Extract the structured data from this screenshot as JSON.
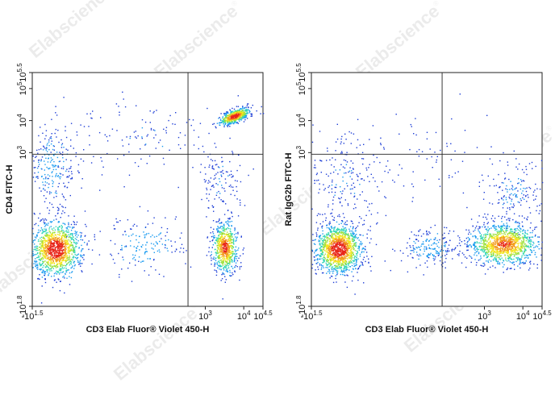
{
  "watermark": {
    "text": "Elabscience",
    "mark": "®"
  },
  "chart_data": [
    {
      "type": "scatter",
      "title": "",
      "xlabel": "CD3 Elab Fluor® Violet 450-H",
      "ylabel": "CD4 FITC-H",
      "xscale": "log",
      "yscale": "log",
      "xlim": [
        -1.5,
        4.5
      ],
      "ylim": [
        -1.8,
        5.5
      ],
      "x_ticks": [
        {
          "base": "-10",
          "exp": "1.5",
          "pos": -1.5
        },
        {
          "base": "10",
          "exp": "3",
          "pos": 3
        },
        {
          "base": "10",
          "exp": "4",
          "pos": 4
        },
        {
          "base": "10",
          "exp": "4.5",
          "pos": 4.5
        }
      ],
      "y_ticks": [
        {
          "base": "-10",
          "exp": "1.8",
          "pos": -1.8
        },
        {
          "base": "10",
          "exp": "3",
          "pos": 3
        },
        {
          "base": "10",
          "exp": "4",
          "pos": 4
        },
        {
          "base": "10",
          "exp": "5",
          "pos": 5
        },
        {
          "base": "10",
          "exp": "5.5",
          "pos": 5.5
        }
      ],
      "gate": {
        "x": 2.55,
        "y": 2.95
      },
      "colormap": [
        "#1f3fd6",
        "#1a9bf0",
        "#2fd6b5",
        "#9be03a",
        "#f3e61d",
        "#f39a1d",
        "#e8261b"
      ],
      "populations": [
        {
          "cx": -0.9,
          "cy": 0.0,
          "sx": 0.32,
          "sy": 0.42,
          "weight": 0.4,
          "peak": 1.0
        },
        {
          "cx": 3.5,
          "cy": 0.05,
          "sx": 0.16,
          "sy": 0.4,
          "weight": 0.22,
          "peak": 0.9
        },
        {
          "cx": 3.75,
          "cy": 4.15,
          "sx": 0.2,
          "sy": 0.1,
          "weight": 0.17,
          "peak": 1.0,
          "tilt": 0.4
        },
        {
          "cx": -1.0,
          "cy": 2.5,
          "sx": 0.35,
          "sy": 0.75,
          "weight": 0.08,
          "peak": 0.15
        },
        {
          "cx": 1.4,
          "cy": 0.1,
          "sx": 0.5,
          "sy": 0.45,
          "weight": 0.05,
          "peak": 0.2
        },
        {
          "cx": 1.3,
          "cy": 3.5,
          "sx": 1.2,
          "sy": 0.6,
          "weight": 0.04,
          "peak": 0.08
        },
        {
          "cx": 3.4,
          "cy": 2.1,
          "sx": 0.3,
          "sy": 0.5,
          "weight": 0.04,
          "peak": 0.1
        }
      ]
    },
    {
      "type": "scatter",
      "title": "",
      "xlabel": "CD3 Elab Fluor® Violet 450-H",
      "ylabel": "Rat IgG2b FITC-H",
      "xscale": "log",
      "yscale": "log",
      "xlim": [
        -1.5,
        4.5
      ],
      "ylim": [
        -1.8,
        5.5
      ],
      "x_ticks": [
        {
          "base": "-10",
          "exp": "1.5",
          "pos": -1.5
        },
        {
          "base": "10",
          "exp": "3",
          "pos": 3
        },
        {
          "base": "10",
          "exp": "4",
          "pos": 4
        },
        {
          "base": "10",
          "exp": "4.5",
          "pos": 4.5
        }
      ],
      "y_ticks": [
        {
          "base": "-10",
          "exp": "1.8",
          "pos": -1.8
        },
        {
          "base": "10",
          "exp": "3",
          "pos": 3
        },
        {
          "base": "10",
          "exp": "4",
          "pos": 4
        },
        {
          "base": "10",
          "exp": "5",
          "pos": 5
        },
        {
          "base": "10",
          "exp": "5.5",
          "pos": 5.5
        }
      ],
      "gate": {
        "x": 1.9,
        "y": 2.95
      },
      "colormap": [
        "#1f3fd6",
        "#1a9bf0",
        "#2fd6b5",
        "#9be03a",
        "#f3e61d",
        "#f39a1d",
        "#e8261b"
      ],
      "populations": [
        {
          "cx": -0.8,
          "cy": 0.0,
          "sx": 0.3,
          "sy": 0.38,
          "weight": 0.42,
          "peak": 1.0
        },
        {
          "cx": 3.5,
          "cy": 0.15,
          "sx": 0.45,
          "sy": 0.32,
          "weight": 0.38,
          "peak": 0.85
        },
        {
          "cx": 1.55,
          "cy": 0.05,
          "sx": 0.35,
          "sy": 0.3,
          "weight": 0.06,
          "peak": 0.2
        },
        {
          "cx": -0.7,
          "cy": 2.0,
          "sx": 0.5,
          "sy": 0.7,
          "weight": 0.06,
          "peak": 0.1
        },
        {
          "cx": 1.0,
          "cy": 2.9,
          "sx": 1.2,
          "sy": 0.7,
          "weight": 0.03,
          "peak": 0.06
        },
        {
          "cx": 3.8,
          "cy": 1.7,
          "sx": 0.4,
          "sy": 0.5,
          "weight": 0.05,
          "peak": 0.12
        }
      ]
    }
  ]
}
